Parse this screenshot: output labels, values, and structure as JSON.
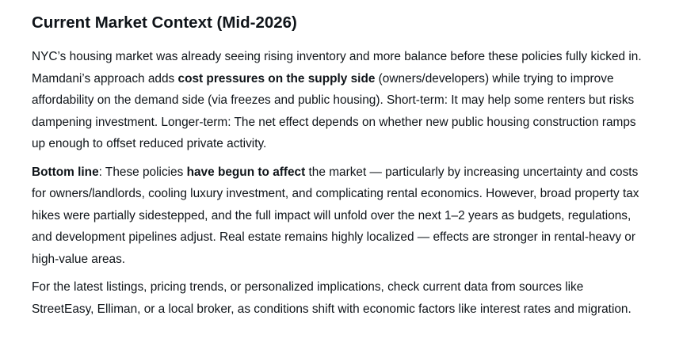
{
  "heading": "Current Market Context (Mid-2026)",
  "paragraphs": [
    {
      "runs": [
        {
          "text": "NYC’s housing market was already seeing rising inventory and more balance before these policies fully kicked in. Mamdani’s approach adds "
        },
        {
          "text": "cost pressures on the supply side",
          "bold": true
        },
        {
          "text": " (owners/developers) while trying to improve affordability on the demand side (via freezes and public housing). Short-term: It may help some renters but risks dampening investment. Longer-term: The net effect depends on whether new public housing construction ramps up enough to offset reduced private activity."
        }
      ]
    },
    {
      "runs": [
        {
          "text": "Bottom line",
          "bold": true
        },
        {
          "text": ": These policies "
        },
        {
          "text": "have begun to affect",
          "bold": true
        },
        {
          "text": " the market — particularly by increasing uncertainty and costs for owners/landlords, cooling luxury investment, and complicating rental economics. However, broad property tax hikes were partially sidestepped, and the full impact will unfold over the next 1–2 years as budgets, regulations, and development pipelines adjust. Real estate remains highly localized — effects are stronger in rental-heavy or high-value areas."
        }
      ]
    },
    {
      "runs": [
        {
          "text": "For the latest listings, pricing trends, or personalized implications, check current data from sources like StreetEasy, Elliman, or a local broker, as conditions shift with economic factors like interest rates and migration."
        }
      ]
    }
  ]
}
